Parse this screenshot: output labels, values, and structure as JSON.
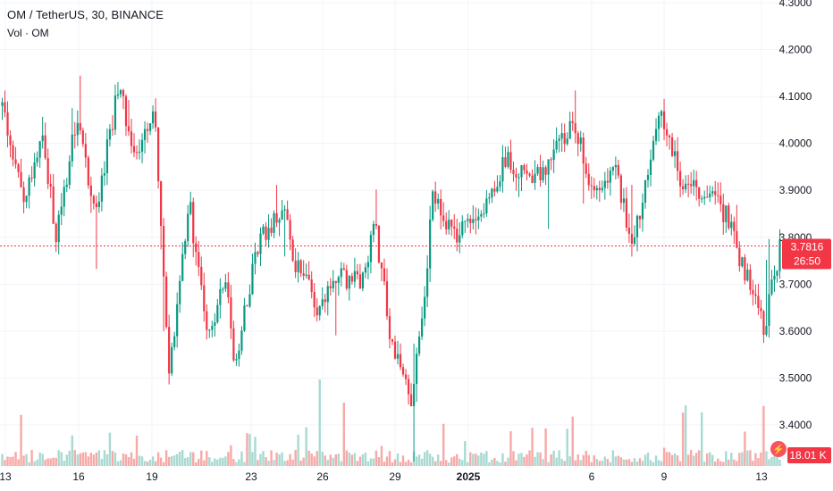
{
  "header": {
    "title": "OM / TetherUS, 30, BINANCE",
    "volume_label": "Vol · OM"
  },
  "price_badge": {
    "price": "3.7816",
    "countdown": "26:50",
    "color": "#f23645"
  },
  "volume_badge": {
    "value": "18.01 K",
    "color": "#f23645"
  },
  "colors": {
    "up": "#089981",
    "down": "#f23645",
    "up_vol": "#a7dad2",
    "down_vol": "#f7a9a7",
    "grid": "#f0f3fa"
  },
  "chart_data": {
    "type": "candlestick",
    "symbol": "OM / TetherUS",
    "interval": "30",
    "exchange": "BINANCE",
    "y_ticks": [
      "3.4000",
      "3.5000",
      "3.6000",
      "3.7000",
      "3.8000",
      "3.9000",
      "4.0000",
      "4.1000",
      "4.2000",
      "4.3000"
    ],
    "ylim": [
      3.38,
      4.3
    ],
    "x_ticks": [
      "13",
      "16",
      "19",
      "23",
      "26",
      "29",
      "2025",
      "6",
      "9",
      "13"
    ],
    "last_price": 3.7816,
    "price_path": [
      {
        "t": 0.0,
        "p": 4.08
      },
      {
        "t": 0.03,
        "p": 3.87
      },
      {
        "t": 0.05,
        "p": 4.02
      },
      {
        "t": 0.07,
        "p": 3.8
      },
      {
        "t": 0.095,
        "p": 4.05
      },
      {
        "t": 0.12,
        "p": 3.85
      },
      {
        "t": 0.15,
        "p": 4.12
      },
      {
        "t": 0.175,
        "p": 3.96
      },
      {
        "t": 0.195,
        "p": 4.09
      },
      {
        "t": 0.215,
        "p": 3.5
      },
      {
        "t": 0.24,
        "p": 3.88
      },
      {
        "t": 0.265,
        "p": 3.58
      },
      {
        "t": 0.285,
        "p": 3.72
      },
      {
        "t": 0.3,
        "p": 3.53
      },
      {
        "t": 0.33,
        "p": 3.8
      },
      {
        "t": 0.36,
        "p": 3.86
      },
      {
        "t": 0.38,
        "p": 3.73
      },
      {
        "t": 0.41,
        "p": 3.64
      },
      {
        "t": 0.43,
        "p": 3.72
      },
      {
        "t": 0.46,
        "p": 3.7
      },
      {
        "t": 0.48,
        "p": 3.82
      },
      {
        "t": 0.5,
        "p": 3.58
      },
      {
        "t": 0.525,
        "p": 3.45
      },
      {
        "t": 0.545,
        "p": 3.72
      },
      {
        "t": 0.555,
        "p": 3.9
      },
      {
        "t": 0.58,
        "p": 3.8
      },
      {
        "t": 0.62,
        "p": 3.86
      },
      {
        "t": 0.65,
        "p": 3.97
      },
      {
        "t": 0.68,
        "p": 3.92
      },
      {
        "t": 0.71,
        "p": 3.98
      },
      {
        "t": 0.735,
        "p": 4.06
      },
      {
        "t": 0.76,
        "p": 3.88
      },
      {
        "t": 0.79,
        "p": 3.94
      },
      {
        "t": 0.81,
        "p": 3.78
      },
      {
        "t": 0.83,
        "p": 3.92
      },
      {
        "t": 0.845,
        "p": 4.08
      },
      {
        "t": 0.87,
        "p": 3.93
      },
      {
        "t": 0.9,
        "p": 3.9
      },
      {
        "t": 0.93,
        "p": 3.85
      },
      {
        "t": 0.96,
        "p": 3.7
      },
      {
        "t": 0.98,
        "p": 3.6
      },
      {
        "t": 1.0,
        "p": 3.78
      }
    ]
  }
}
